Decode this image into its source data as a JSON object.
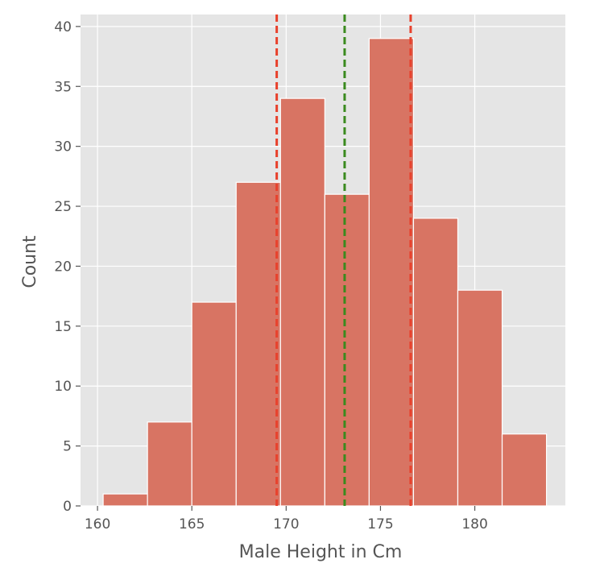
{
  "chart_data": {
    "type": "bar",
    "subtype": "histogram",
    "title": "",
    "xlabel": "Male Height in Cm",
    "ylabel": "Count",
    "xlim": [
      159.1,
      184.8
    ],
    "ylim": [
      0,
      41
    ],
    "xticks": [
      160,
      165,
      170,
      175,
      180
    ],
    "yticks": [
      0,
      5,
      10,
      15,
      20,
      25,
      30,
      35,
      40
    ],
    "bins": [
      {
        "x0": 160.3,
        "x1": 162.65,
        "count": 1
      },
      {
        "x0": 162.65,
        "x1": 165.0,
        "count": 7
      },
      {
        "x0": 165.0,
        "x1": 167.35,
        "count": 17
      },
      {
        "x0": 167.35,
        "x1": 169.7,
        "count": 27
      },
      {
        "x0": 169.7,
        "x1": 172.05,
        "count": 34
      },
      {
        "x0": 172.05,
        "x1": 174.4,
        "count": 26
      },
      {
        "x0": 174.4,
        "x1": 176.75,
        "count": 39
      },
      {
        "x0": 176.75,
        "x1": 179.1,
        "count": 24
      },
      {
        "x0": 179.1,
        "x1": 181.45,
        "count": 18
      },
      {
        "x0": 181.45,
        "x1": 183.8,
        "count": 6
      }
    ],
    "reference_lines": [
      {
        "x": 169.5,
        "color": "#e8412c",
        "style": "dashed"
      },
      {
        "x": 173.1,
        "color": "#3a8a1e",
        "style": "dashed"
      },
      {
        "x": 176.6,
        "color": "#e8412c",
        "style": "dashed"
      }
    ],
    "grid": true,
    "legend": "none",
    "colors": {
      "bar": "#d87463",
      "bar_edge": "#ffffff",
      "background": "#e5e5e5",
      "grid": "#ffffff",
      "text": "#555555"
    }
  }
}
